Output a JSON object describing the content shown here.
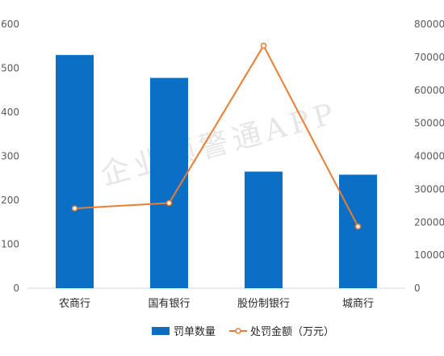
{
  "chart_data": {
    "type": "bar",
    "categories": [
      "农商行",
      "国有银行",
      "股份制银行",
      "城商行"
    ],
    "series": [
      {
        "name": "罚单数量",
        "type": "bar",
        "axis": "left",
        "values": [
          530,
          478,
          265,
          258
        ],
        "color": "#0b6fc6"
      },
      {
        "name": "处罚金额（万元）",
        "type": "line",
        "axis": "right",
        "values": [
          24200,
          25800,
          73500,
          18700
        ],
        "color": "#ed7d31"
      }
    ],
    "y_left": {
      "min": 0,
      "max": 600,
      "ticks": [
        0,
        100,
        200,
        300,
        400,
        500,
        600
      ]
    },
    "y_right": {
      "min": 0,
      "max": 80000,
      "ticks": [
        0,
        10000,
        20000,
        30000,
        40000,
        50000,
        60000,
        70000,
        80000
      ]
    },
    "legend_position": "bottom",
    "grid": false
  },
  "watermark": "企业预警通APP"
}
